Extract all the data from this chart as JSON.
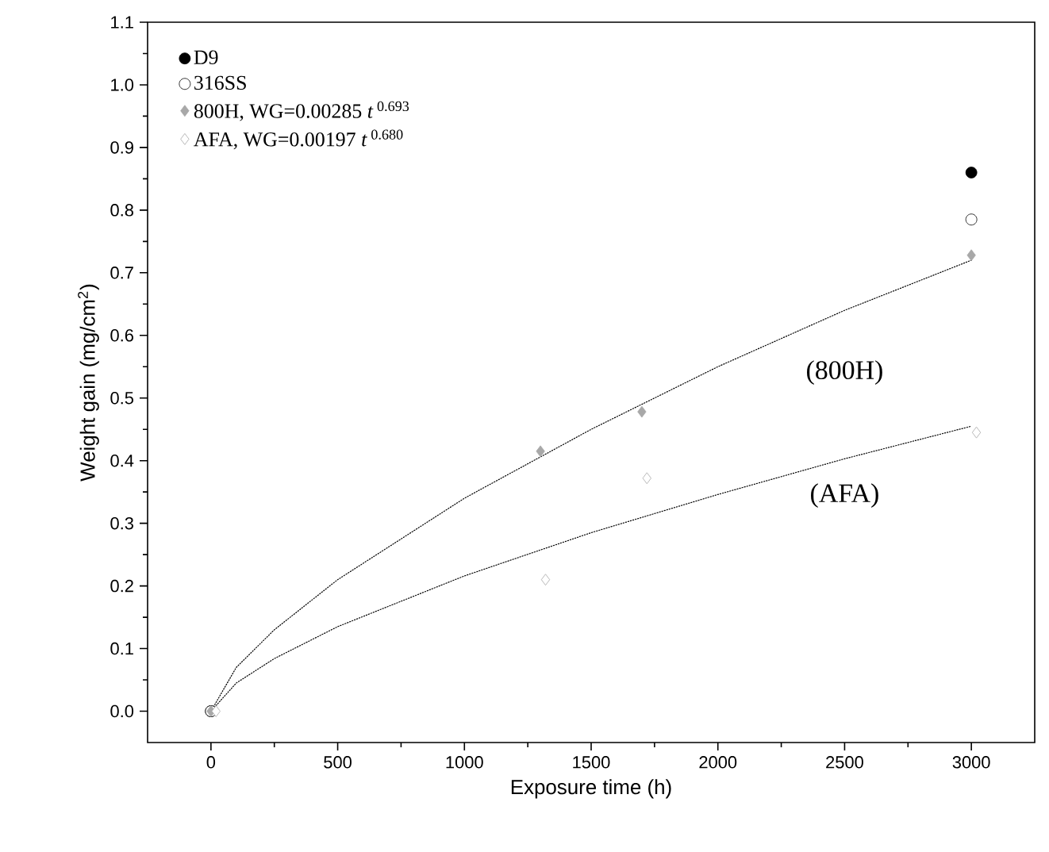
{
  "chart_data": {
    "type": "scatter",
    "xlabel": "Exposure time (h)",
    "ylabel": "Weight gain (mg/cm$^{2}$)",
    "xlim": [
      -250,
      3250
    ],
    "ylim": [
      -0.05,
      1.1
    ],
    "xticks": [
      0,
      500,
      1000,
      1500,
      2000,
      2500,
      3000
    ],
    "yticks": [
      {
        "value": 0,
        "label": "0.0"
      },
      {
        "value": 0.1,
        "label": "0.1"
      },
      {
        "value": 0.2,
        "label": "0.2"
      },
      {
        "value": 0.3,
        "label": "0.3"
      },
      {
        "value": 0.4,
        "label": "0.4"
      },
      {
        "value": 0.5,
        "label": "0.5"
      },
      {
        "value": 0.6,
        "label": "0.6"
      },
      {
        "value": 0.7,
        "label": "0.7"
      },
      {
        "value": 0.8,
        "label": "0.8"
      },
      {
        "value": 0.9,
        "label": "0.9"
      },
      {
        "value": 1.0,
        "label": "1.0"
      },
      {
        "value": 1.1,
        "label": "1.1"
      }
    ],
    "legend": "top left",
    "grid": false,
    "series": [
      {
        "type": "line",
        "line_style": "dotted",
        "marker": "none",
        "color": "#000000",
        "x": [
          0,
          100,
          250,
          500,
          1000,
          1500,
          2000,
          2500,
          3000
        ],
        "values": [
          0,
          0.07,
          0.13,
          0.21,
          0.34,
          0.45,
          0.55,
          0.64,
          0.72
        ]
      },
      {
        "type": "line",
        "line_style": "dotted",
        "marker": "none",
        "color": "#000000",
        "x": [
          0,
          100,
          250,
          500,
          1000,
          1500,
          2000,
          2500,
          3000
        ],
        "values": [
          0,
          0.045,
          0.084,
          0.135,
          0.216,
          0.285,
          0.346,
          0.403,
          0.455
        ]
      },
      {
        "name": "D9",
        "marker": "circle",
        "color": "#000000",
        "x": [
          0,
          3000
        ],
        "values": [
          0,
          0.86
        ]
      },
      {
        "name": "316SS",
        "marker": "circle-open",
        "color": "#000000",
        "x": [
          0,
          3000
        ],
        "values": [
          0,
          0.785
        ]
      },
      {
        "name": "800H, WG=0.00285 *t*$^{ 0.693}$",
        "marker": "diamond",
        "color": "#a8a8a8",
        "x": [
          0,
          1300,
          1700,
          3000
        ],
        "values": [
          0,
          0.415,
          0.478,
          0.728
        ]
      },
      {
        "name": "AFA, WG=0.00197 *t*$^{ 0.680}$",
        "marker": "diamond-open",
        "color": "#a8a8a8",
        "x": [
          20,
          1320,
          1720,
          3020
        ],
        "values": [
          0,
          0.21,
          0.372,
          0.445
        ]
      }
    ],
    "annotations": [
      "(800H)",
      "(AFA)"
    ]
  }
}
